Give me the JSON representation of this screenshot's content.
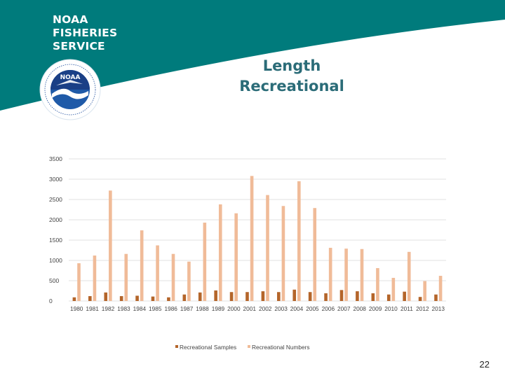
{
  "brand": {
    "lines": [
      "NOAA",
      "FISHERIES",
      "SERVICE"
    ],
    "band_color": "#007b7c",
    "logo_text": "NOAA"
  },
  "title": {
    "line1": "Length",
    "line2": "Recreational"
  },
  "page_number": "22",
  "colors": {
    "samples": "#b4652a",
    "numbers": "#f0bb98",
    "grid": "#e2e2e2",
    "title": "#2b6c78"
  },
  "chart_data": {
    "type": "bar",
    "title": "",
    "xlabel": "",
    "ylabel": "",
    "ylim": [
      0,
      3500
    ],
    "yticks": [
      0,
      500,
      1000,
      1500,
      2000,
      2500,
      3000,
      3500
    ],
    "grid": true,
    "legend": "bottom",
    "categories": [
      "1980",
      "1981",
      "1982",
      "1983",
      "1984",
      "1985",
      "1986",
      "1987",
      "1988",
      "1989",
      "2000",
      "2001",
      "2002",
      "2003",
      "2004",
      "2005",
      "2006",
      "2007",
      "2008",
      "2009",
      "2010",
      "2011",
      "2012",
      "2013"
    ],
    "series": [
      {
        "name": "Recreational Samples",
        "color": "#b4652a",
        "values": [
          90,
          120,
          210,
          120,
          130,
          110,
          90,
          160,
          210,
          260,
          220,
          220,
          240,
          220,
          280,
          220,
          190,
          270,
          240,
          190,
          160,
          230,
          100,
          160
        ]
      },
      {
        "name": "Recreational Numbers",
        "color": "#f0bb98",
        "values": [
          930,
          1120,
          2720,
          1160,
          1740,
          1370,
          1160,
          970,
          1930,
          2380,
          2160,
          3080,
          2610,
          2340,
          2950,
          2290,
          1310,
          1290,
          1280,
          810,
          570,
          1210,
          490,
          620
        ]
      }
    ]
  }
}
